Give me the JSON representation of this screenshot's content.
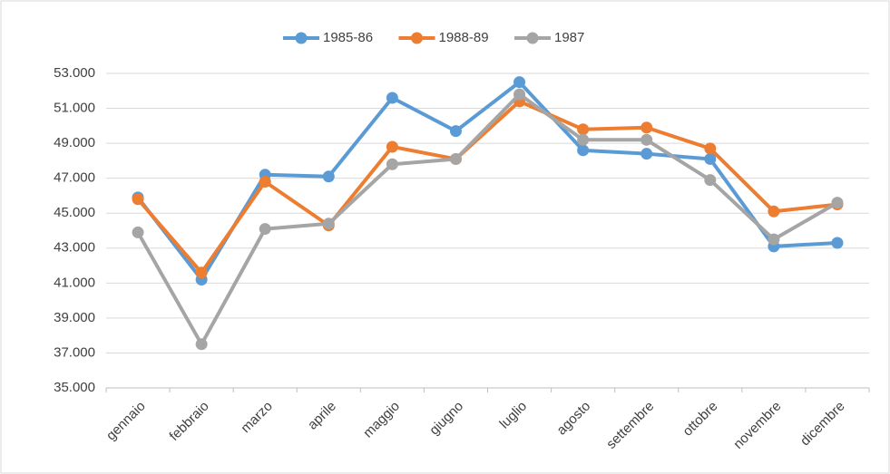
{
  "chart_data": {
    "type": "line",
    "categories": [
      "gennaio",
      "febbraio",
      "marzo",
      "aprile",
      "maggio",
      "giugno",
      "luglio",
      "agosto",
      "settembre",
      "ottobre",
      "novembre",
      "dicembre"
    ],
    "series": [
      {
        "name": "1985-86",
        "color": "#5b9bd5",
        "values": [
          45900,
          41200,
          47200,
          47100,
          51600,
          49700,
          52500,
          48600,
          48400,
          48100,
          43100,
          43300
        ]
      },
      {
        "name": "1988-89",
        "color": "#ed7d31",
        "values": [
          45800,
          41600,
          46800,
          44300,
          48800,
          48100,
          51400,
          49800,
          49900,
          48700,
          45100,
          45500
        ]
      },
      {
        "name": "1987",
        "color": "#a5a5a5",
        "values": [
          43900,
          37500,
          44100,
          44400,
          47800,
          48100,
          51800,
          49200,
          49200,
          46900,
          43500,
          45600
        ]
      }
    ],
    "ylim": [
      35000,
      53000
    ],
    "yticks": [
      {
        "value": 35000,
        "label": "35.000"
      },
      {
        "value": 37000,
        "label": "37.000"
      },
      {
        "value": 39000,
        "label": "39.000"
      },
      {
        "value": 41000,
        "label": "41.000"
      },
      {
        "value": 43000,
        "label": "43.000"
      },
      {
        "value": 45000,
        "label": "45.000"
      },
      {
        "value": 47000,
        "label": "47.000"
      },
      {
        "value": 49000,
        "label": "49.000"
      },
      {
        "value": 51000,
        "label": "51.000"
      },
      {
        "value": 53000,
        "label": "53.000"
      }
    ],
    "grid": true,
    "legend": "top"
  }
}
